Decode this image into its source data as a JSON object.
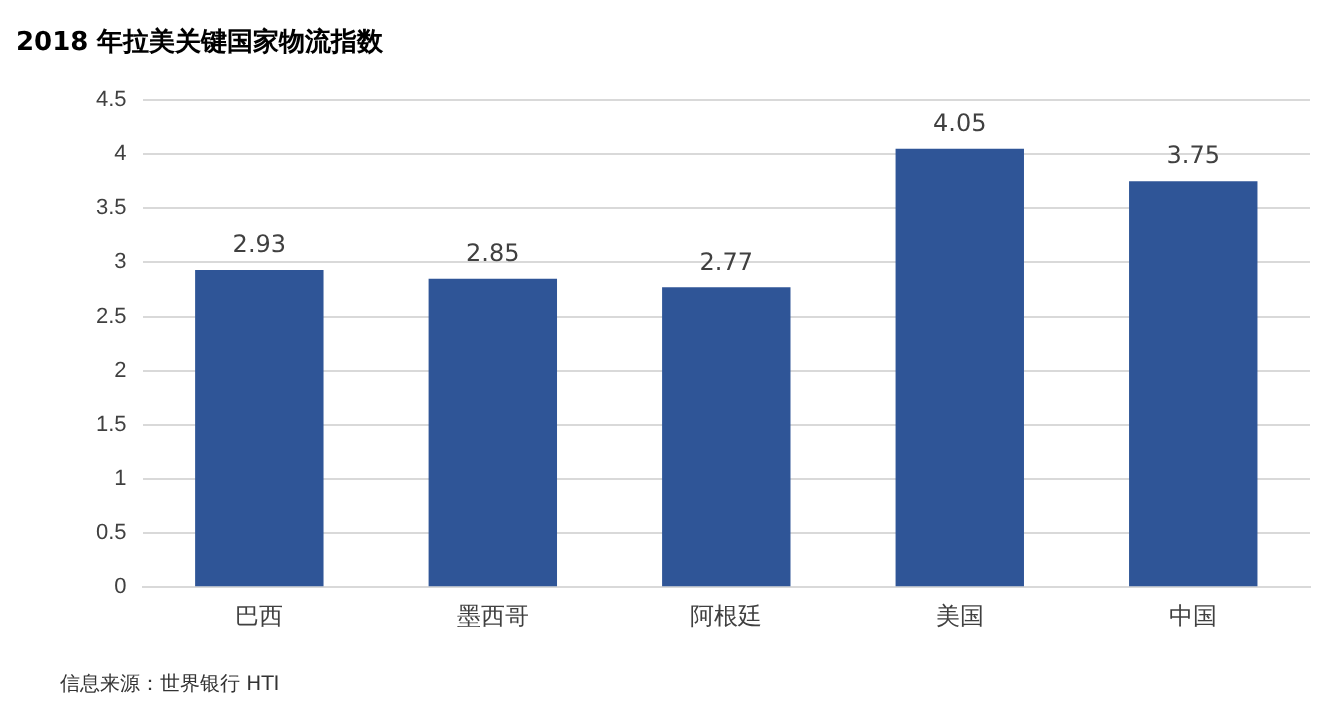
{
  "chart_data": {
    "type": "bar",
    "title": "2018 年拉美关键国家物流指数",
    "categories": [
      "巴西",
      "墨西哥",
      "阿根廷",
      "美国",
      "中国"
    ],
    "values": [
      2.93,
      2.85,
      2.77,
      4.05,
      3.75
    ],
    "color": "#2f5597",
    "ylim": [
      0,
      4.5
    ],
    "yticks": [
      0,
      0.5,
      1,
      1.5,
      2,
      2.5,
      3,
      3.5,
      4,
      4.5
    ],
    "grid": "y",
    "data_labels": true,
    "legend": false,
    "annotations": [
      "信息来源：世界银行 HTI"
    ]
  }
}
